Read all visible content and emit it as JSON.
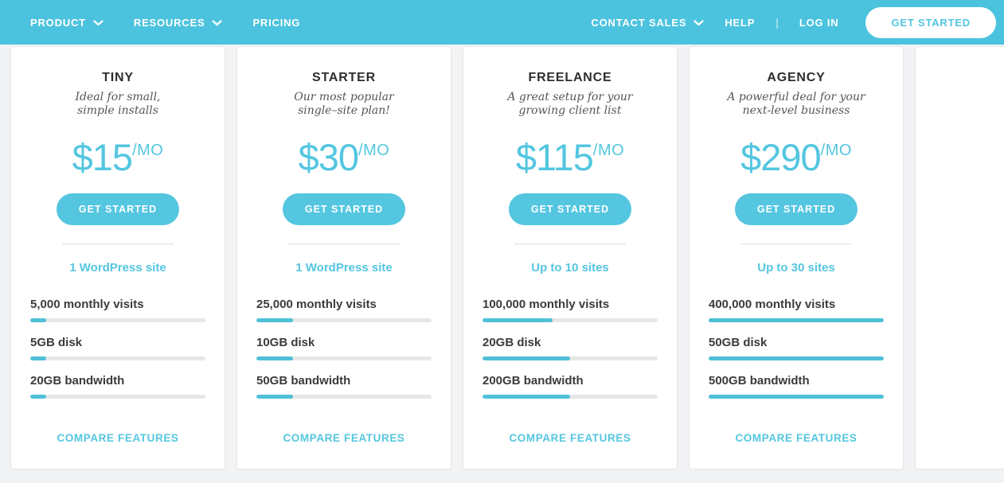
{
  "nav": {
    "left": [
      {
        "label": "PRODUCT"
      },
      {
        "label": "RESOURCES"
      },
      {
        "label": "PRICING"
      }
    ],
    "right": [
      {
        "label": "CONTACT SALES"
      },
      {
        "label": "HELP"
      },
      {
        "label": "LOG IN"
      }
    ],
    "divider": "|",
    "cta_label": "GET STARTED"
  },
  "cards": {
    "cta_label": "GET STARTED",
    "compare_label": "COMPARE FEATURES",
    "plans": [
      {
        "name": "TINY",
        "tagline_line1": "Ideal for small,",
        "tagline_line2": "simple installs",
        "price": "$15",
        "period": "/MO",
        "sites": "1 WordPress site",
        "features": [
          {
            "label": "5,000 monthly visits",
            "percent": 9
          },
          {
            "label": "5GB disk",
            "percent": 9
          },
          {
            "label": "20GB bandwidth",
            "percent": 9
          }
        ]
      },
      {
        "name": "STARTER",
        "tagline_line1": "Our most popular",
        "tagline_line2": "single–site plan!",
        "price": "$30",
        "period": "/MO",
        "sites": "1 WordPress site",
        "features": [
          {
            "label": "25,000 monthly visits",
            "percent": 21
          },
          {
            "label": "10GB disk",
            "percent": 21
          },
          {
            "label": "50GB bandwidth",
            "percent": 21
          }
        ]
      },
      {
        "name": "FREELANCE",
        "tagline_line1": "A great setup for your",
        "tagline_line2": "growing client list",
        "price": "$115",
        "period": "/MO",
        "sites": "Up to 10 sites",
        "features": [
          {
            "label": "100,000 monthly visits",
            "percent": 40
          },
          {
            "label": "20GB disk",
            "percent": 50
          },
          {
            "label": "200GB bandwidth",
            "percent": 50
          }
        ]
      },
      {
        "name": "AGENCY",
        "tagline_line1": "A powerful deal for your",
        "tagline_line2": "next-level business",
        "price": "$290",
        "period": "/MO",
        "sites": "Up to 30 sites",
        "features": [
          {
            "label": "400,000 monthly visits",
            "percent": 100
          },
          {
            "label": "50GB disk",
            "percent": 100
          },
          {
            "label": "500GB bandwidth",
            "percent": 100
          }
        ]
      }
    ]
  },
  "colors": {
    "nav_bg": "#4cc3de",
    "accent": "#54c6e0",
    "bar_fill": "#4fc0d8",
    "bar_track": "#e7e7e7",
    "title_text": "#2e2e2e",
    "tagline_text": "#53565c",
    "feature_text": "#3b3b3b",
    "page_bg": "#f2f3f4",
    "card_bg": "#ffffff",
    "card_border": "#e8e8e8"
  }
}
